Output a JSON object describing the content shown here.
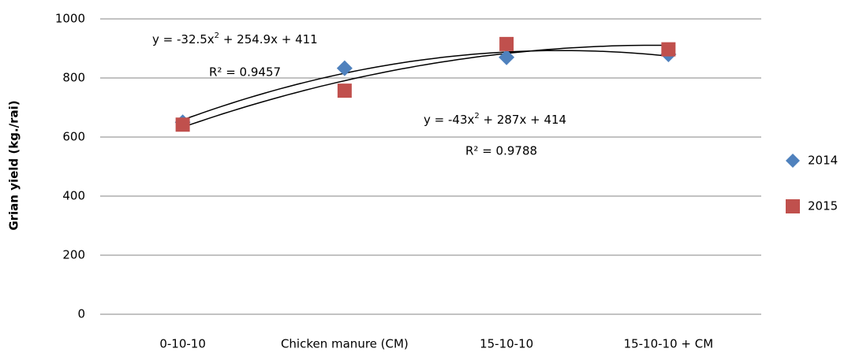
{
  "chart_data": {
    "type": "scatter",
    "y_label": "Grian yield (kg./rai)",
    "categories": [
      "0-10-10",
      "Chicken manure (CM)",
      "15-10-10",
      "15-10-10 + CM"
    ],
    "series": [
      {
        "name": "2014",
        "color": "#4f81bd",
        "marker": "diamond",
        "values": [
          650,
          833,
          870,
          880
        ]
      },
      {
        "name": "2015",
        "color": "#c0504d",
        "marker": "square",
        "values": [
          642,
          757,
          915,
          897
        ]
      }
    ],
    "trendlines": [
      {
        "coefficients": [
          -32.5,
          254.9,
          411
        ],
        "equation": [
          "y = -32.5x",
          "2",
          " + 254.9x + 411"
        ],
        "r_squared": "R² = 0.9457"
      },
      {
        "coefficients": [
          -43,
          287,
          414
        ],
        "equation": [
          "y = -43x",
          "2",
          " + 287x + 414"
        ],
        "r_squared": "R² = 0.9788"
      }
    ],
    "ylim": [
      0,
      1000
    ],
    "yticks": [
      0,
      200,
      400,
      600,
      800,
      1000
    ],
    "grid": true,
    "legend": "right"
  }
}
